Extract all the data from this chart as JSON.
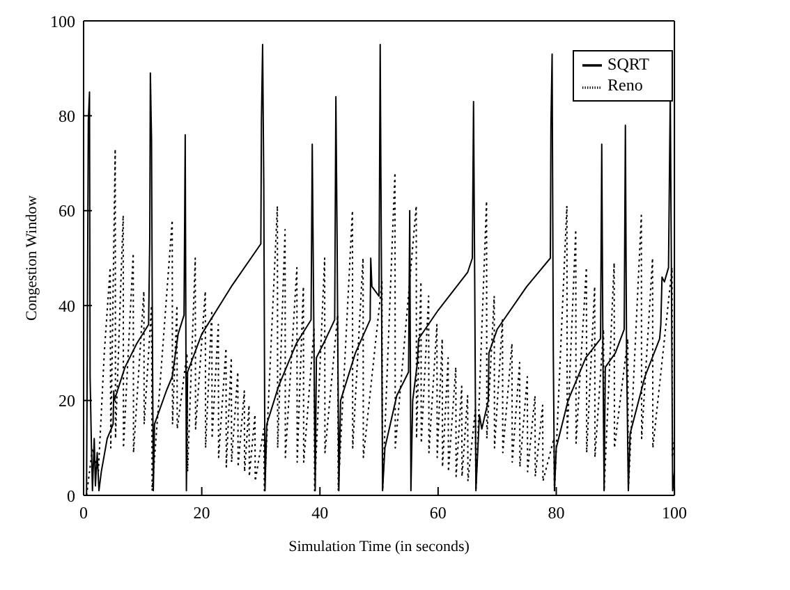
{
  "chart_data": {
    "type": "line",
    "xlabel": "Simulation Time (in seconds)",
    "ylabel": "Congestion Window",
    "xlim": [
      0,
      100
    ],
    "ylim": [
      0,
      100
    ],
    "xticks": [
      0,
      20,
      40,
      60,
      80,
      100
    ],
    "yticks": [
      0,
      20,
      40,
      60,
      80,
      100
    ],
    "grid": false,
    "legend": "top right",
    "marker": "none",
    "series": [
      {
        "name": "SQRT",
        "color": "#000000",
        "line_style": "solid",
        "x": [
          0.5,
          0.8,
          1.0,
          1.1,
          1.3,
          1.5,
          1.8,
          2.0,
          2.3,
          2.6,
          3,
          4,
          5,
          5.1,
          5.2,
          7,
          9,
          11,
          11.2,
          11.3,
          11.5,
          11.6,
          11.8,
          12,
          14,
          15,
          16,
          17,
          17.1,
          17.2,
          17.4,
          17.6,
          20,
          25,
          30,
          30.1,
          30.3,
          30.5,
          30.7,
          31,
          33,
          36,
          38.5,
          38.7,
          38.9,
          39.2,
          39.4,
          41,
          42.5,
          42.7,
          42.9,
          43.2,
          43.5,
          46,
          48.5,
          48.6,
          48.8,
          50,
          50.2,
          50.4,
          50.6,
          51,
          53,
          55,
          55.2,
          55.4,
          55.7,
          56.5,
          56.7,
          60,
          65,
          65.8,
          66,
          66.2,
          66.4,
          67,
          67.4,
          68.5,
          68.6,
          70,
          75,
          79,
          79.1,
          79.3,
          79.5,
          79.7,
          80,
          82,
          85,
          87.5,
          87.7,
          87.9,
          88.1,
          88.3,
          90,
          91.5,
          91.7,
          91.9,
          92.2,
          92.5,
          95,
          97.5,
          97.7,
          97.9,
          98.3,
          99,
          99.3,
          99.5,
          99.7,
          100
        ],
        "values": [
          0,
          79,
          85,
          25,
          12,
          1,
          12,
          2,
          9,
          1,
          5,
          12,
          15,
          22,
          20,
          27,
          32,
          36,
          54,
          89,
          75,
          45,
          1,
          15,
          22,
          25,
          34,
          38,
          57,
          76,
          1,
          26,
          34,
          44,
          53,
          79,
          95,
          65,
          1,
          15,
          23,
          32,
          37,
          74,
          45,
          1,
          29,
          33,
          37,
          84,
          55,
          1,
          20,
          30,
          37,
          50,
          44,
          42,
          95,
          50,
          1,
          10,
          21,
          26,
          60,
          1,
          20,
          28,
          33,
          39,
          47,
          50,
          83,
          45,
          1,
          17,
          14,
          20,
          30,
          35,
          44,
          50,
          78,
          93,
          30,
          1,
          10,
          20,
          29,
          33,
          74,
          30,
          1,
          27,
          30,
          35,
          78,
          30,
          1,
          13,
          25,
          33,
          36,
          46,
          45,
          48,
          85,
          45,
          1,
          5
        ]
      },
      {
        "name": "Reno",
        "color": "#000000",
        "line_style": "dotted",
        "x": [
          0.5,
          1.5,
          2.5,
          3.5,
          4.5,
          4.6,
          5.35,
          5.4,
          6.7,
          6.75,
          8.4,
          8.45,
          10.2,
          10.25,
          11.5,
          11.6,
          15,
          15.05,
          15.8,
          15.85,
          17.5,
          17.6,
          18.9,
          18.95,
          20.6,
          20.65,
          21.7,
          21.75,
          22.8,
          22.85,
          24.1,
          24.15,
          25,
          25.05,
          26.1,
          26.15,
          27.2,
          27.25,
          28,
          28.05,
          29,
          29.05,
          30.5,
          30.6,
          32.8,
          32.85,
          34.1,
          34.15,
          36.1,
          36.15,
          37.2,
          37.25,
          39,
          39.1,
          40.8,
          40.85,
          43,
          43.1,
          45.5,
          45.55,
          47.3,
          47.35,
          50.5,
          50.6,
          52.7,
          52.75,
          56.3,
          56.35,
          57.1,
          57.15,
          58.4,
          58.45,
          59.8,
          59.85,
          60.7,
          60.75,
          61.7,
          61.75,
          63,
          63.05,
          64,
          64.05,
          65,
          65.05,
          66.3,
          66.4,
          68.2,
          68.25,
          69.5,
          69.55,
          70.9,
          70.95,
          72.5,
          72.55,
          73.8,
          73.85,
          75.1,
          75.15,
          76.4,
          76.45,
          77.7,
          77.75,
          79.6,
          79.7,
          81.8,
          81.85,
          83.3,
          83.35,
          85.1,
          85.15,
          86.5,
          86.55,
          88,
          88.1,
          89.8,
          89.85,
          92.1,
          92.2,
          94.4,
          94.45,
          96.3,
          96.35,
          99.6,
          99.65,
          100
        ],
        "values": [
          0,
          10,
          5,
          30,
          48,
          10,
          73,
          12,
          59,
          10,
          51,
          9,
          43,
          15,
          40,
          1,
          58,
          15,
          40,
          14,
          30,
          5,
          50,
          14,
          43,
          10,
          39,
          12,
          36,
          8,
          31,
          6,
          29,
          7,
          26,
          6,
          22,
          5,
          19,
          4,
          17,
          3,
          14,
          1,
          61,
          10,
          56,
          8,
          48,
          7,
          44,
          7,
          35,
          1,
          50,
          9,
          38,
          1,
          60,
          10,
          50,
          8,
          45,
          1,
          68,
          10,
          61,
          12,
          45,
          11,
          42,
          9,
          36,
          8,
          33,
          6,
          29,
          5,
          27,
          4,
          23,
          4,
          21,
          3,
          18,
          1,
          62,
          12,
          42,
          10,
          37,
          9,
          32,
          7,
          28,
          6,
          25,
          5,
          21,
          4,
          19,
          3,
          12,
          1,
          61,
          12,
          56,
          11,
          48,
          9,
          44,
          8,
          35,
          1,
          49,
          10,
          33,
          1,
          59,
          12,
          50,
          10,
          48,
          8,
          12
        ]
      }
    ]
  }
}
